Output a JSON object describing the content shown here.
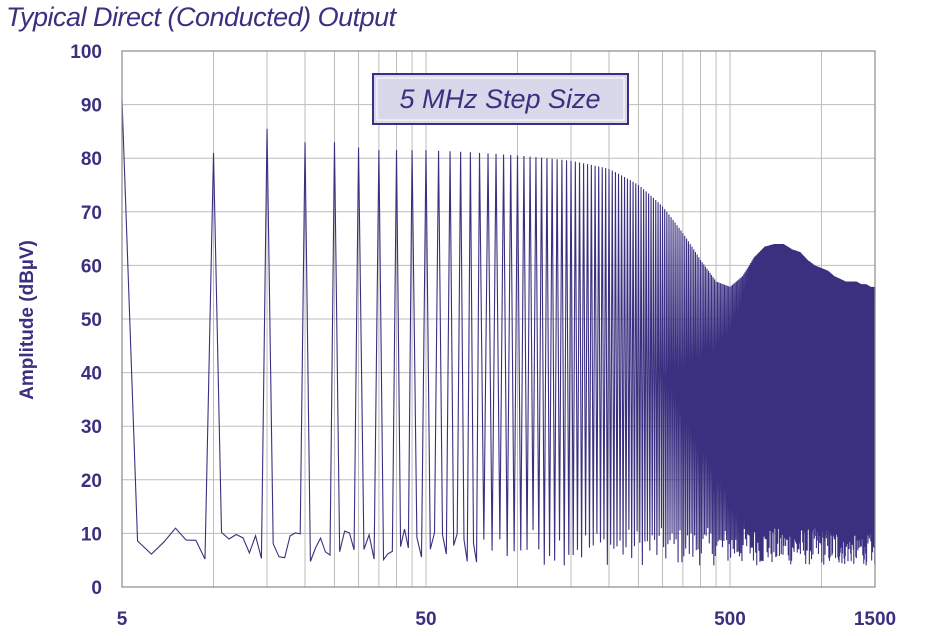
{
  "chart_data": {
    "type": "line",
    "title": "Typical Direct (Conducted) Output",
    "ylabel": "Amplitude (dBµV)",
    "xlabel": "",
    "annotation": "5 MHz Step Size",
    "x_scale": "log",
    "xlim": [
      5,
      1500
    ],
    "ylim": [
      0,
      100
    ],
    "x_ticks": [
      5,
      50,
      500,
      1500
    ],
    "x_tick_labels": [
      "5",
      "50",
      "500",
      "1500"
    ],
    "y_ticks": [
      0,
      10,
      20,
      30,
      40,
      50,
      60,
      70,
      80,
      90,
      100
    ],
    "y_tick_labels": [
      "0",
      "10",
      "20",
      "30",
      "40",
      "50",
      "60",
      "70",
      "80",
      "90",
      "100"
    ],
    "grid": true,
    "colors": {
      "line": "#3a3080",
      "grid": "#bdbdbd",
      "annotation_fill": "#d9d8ea"
    },
    "series": [
      {
        "step_mhz": 5,
        "peaks_x": [
          5,
          10,
          15,
          20,
          25,
          30,
          35,
          40,
          45,
          50,
          100,
          150,
          200,
          250,
          300,
          350,
          400,
          450,
          500,
          550,
          600,
          650,
          700,
          750,
          800,
          850,
          900,
          950,
          1000,
          1050,
          1100,
          1150,
          1200,
          1250,
          1300,
          1350,
          1400,
          1450,
          1500
        ],
        "peaks_y": [
          91,
          81,
          85.5,
          83,
          83,
          82,
          81.5,
          81.5,
          81.5,
          81.5,
          80.5,
          79.5,
          78,
          75,
          71,
          66,
          61,
          57,
          56,
          58,
          61.5,
          63.5,
          64,
          64,
          63,
          62.5,
          61,
          60,
          59.5,
          59,
          58,
          57.5,
          57,
          57,
          57,
          56.5,
          56.5,
          56,
          56
        ],
        "noise_floor_range": [
          4,
          11
        ]
      }
    ]
  }
}
